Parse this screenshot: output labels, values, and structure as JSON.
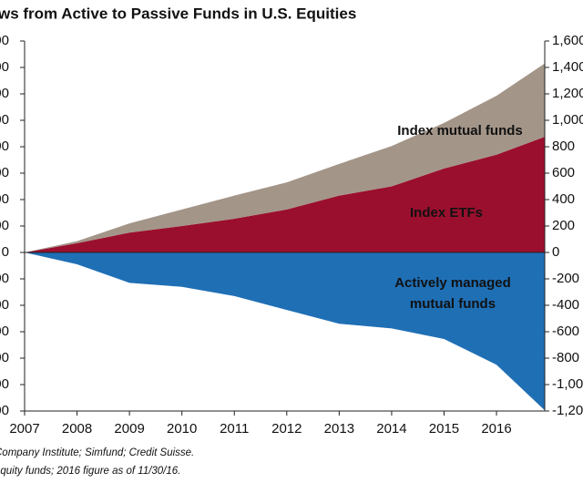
{
  "chart_data": {
    "type": "area",
    "title": "ws from Active to Passive Funds in U.S. Equities",
    "notes": [
      "Company Institute; Simfund; Credit Suisse.",
      "equity funds; 2016 figure as of 11/30/16."
    ],
    "x": [
      2007,
      2008,
      2009,
      2010,
      2011,
      2012,
      2013,
      2014,
      2015,
      2016,
      2016.92
    ],
    "series": [
      {
        "name": "Index ETFs",
        "color": "#9b0f2e",
        "values": [
          0,
          70,
          150,
          200,
          255,
          325,
          430,
          500,
          635,
          740,
          875
        ]
      },
      {
        "name": "Index mutual funds",
        "color": "#a39588",
        "values": [
          0,
          15,
          70,
          125,
          175,
          205,
          240,
          305,
          345,
          445,
          555
        ]
      },
      {
        "name": "Actively managed mutual funds",
        "color": "#1f6fb5",
        "values": [
          0,
          -90,
          -230,
          -260,
          -330,
          -435,
          -540,
          -575,
          -655,
          -850,
          -1195
        ]
      }
    ],
    "xlim": [
      2007,
      2016.92
    ],
    "xticks": [
      2007,
      2008,
      2009,
      2010,
      2011,
      2012,
      2013,
      2014,
      2015,
      2016
    ],
    "ylim": [
      -1200,
      1600
    ],
    "yticks": [
      {
        "value": 1600,
        "label": "1,600"
      },
      {
        "value": 1400,
        "label": "1,400"
      },
      {
        "value": 1200,
        "label": "1,200"
      },
      {
        "value": 1000,
        "label": "1,000"
      },
      800,
      600,
      400,
      200,
      0,
      -200,
      -400,
      -600,
      -800,
      {
        "value": -1000,
        "label": "-1,000"
      },
      {
        "value": -1200,
        "label": "-1,200"
      }
    ]
  }
}
